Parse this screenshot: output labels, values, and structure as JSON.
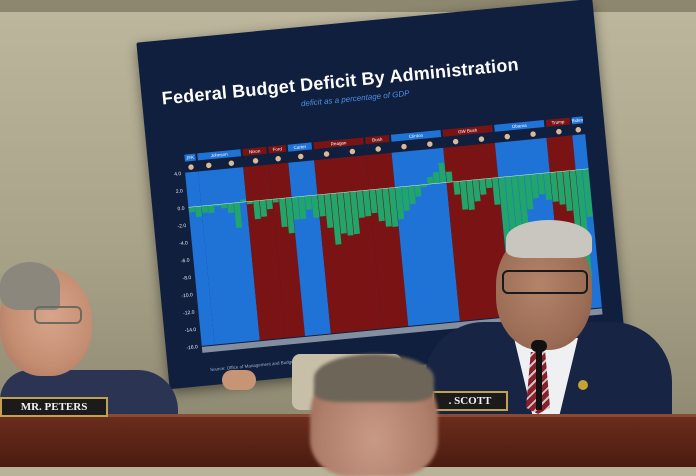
{
  "poster": {
    "title": "Federal Budget Deficit By Administration",
    "subtitle": "deficit as a percentage of GDP",
    "source": "Source: Office of Management and Budget"
  },
  "chart_data": {
    "type": "bar",
    "title": "Federal Budget Deficit By Administration",
    "subtitle": "deficit as a percentage of GDP",
    "yticks": [
      "4.0",
      "2.0",
      "0.0",
      "-2.0",
      "-4.0",
      "-6.0",
      "-8.0",
      "-10.0",
      "-12.0",
      "-14.0",
      "-16.0"
    ],
    "ylim": [
      -16,
      4
    ],
    "administrations": [
      {
        "name": "JFK",
        "party": "D",
        "values": [
          -0.6,
          -1.2
        ]
      },
      {
        "name": "Johnson",
        "party": "D",
        "values": [
          -0.8,
          -0.9,
          -0.2,
          -0.5,
          -1.1,
          -2.9,
          0.3
        ]
      },
      {
        "name": "Nixon",
        "party": "R",
        "values": [
          -0.3,
          -2.1,
          -1.9,
          -1.1
        ]
      },
      {
        "name": "Ford",
        "party": "R",
        "values": [
          -0.4,
          -3.3,
          -4.1
        ]
      },
      {
        "name": "Carter",
        "party": "D",
        "values": [
          -2.6,
          -2.6,
          -1.6,
          -2.6
        ]
      },
      {
        "name": "Reagan",
        "party": "R",
        "values": [
          -2.5,
          -3.9,
          -5.9,
          -4.7,
          -5.0,
          -4.9,
          -3.1,
          -3.0
        ]
      },
      {
        "name": "Bush",
        "party": "R",
        "values": [
          -2.7,
          -3.7,
          -4.4,
          -4.5
        ]
      },
      {
        "name": "Clinton",
        "party": "D",
        "values": [
          -3.7,
          -2.8,
          -2.1,
          -1.3,
          -0.3,
          0.8,
          1.3,
          2.3
        ]
      },
      {
        "name": "GW Bush",
        "party": "R",
        "values": [
          1.2,
          -1.5,
          -3.3,
          -3.4,
          -2.5,
          -1.8,
          -1.1,
          -3.1
        ]
      },
      {
        "name": "Obama",
        "party": "D",
        "values": [
          -9.8,
          -8.6,
          -8.3,
          -6.7,
          -4.0,
          -2.8,
          -2.4,
          -3.1
        ]
      },
      {
        "name": "Trump",
        "party": "R",
        "values": [
          -3.4,
          -3.8,
          -4.6,
          -14.7
        ]
      },
      {
        "name": "Biden",
        "party": "D",
        "values": [
          -12.3,
          -5.5
        ]
      }
    ]
  },
  "nameplates": {
    "left": "MR. PETERS",
    "right": ". SCOTT"
  },
  "colors": {
    "dem": "#1f73d6",
    "rep": "#7a1414",
    "deficit_bar": "#21a56a",
    "poster_bg": "#0f1f3d"
  }
}
